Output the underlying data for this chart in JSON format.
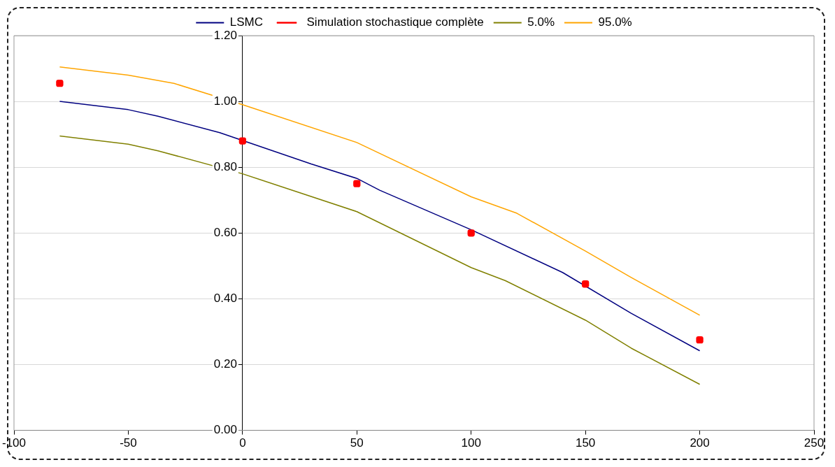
{
  "chart_data": {
    "type": "line",
    "xlim": [
      -100,
      250
    ],
    "xticks": [
      -100,
      -50,
      0,
      50,
      100,
      150,
      200,
      250
    ],
    "ylim": [
      0,
      1.2
    ],
    "yticks": [
      {
        "value": 0,
        "label": "0.00"
      },
      {
        "value": 0.2,
        "label": "0.20"
      },
      {
        "value": 0.4,
        "label": "0.40"
      },
      {
        "value": 0.6,
        "label": "0.60"
      },
      {
        "value": 0.8,
        "label": "0.80"
      },
      {
        "value": 1.0,
        "label": "1.00"
      },
      {
        "value": 1.2,
        "label": "1.20"
      }
    ],
    "grid": "y",
    "legend": "top",
    "series": [
      {
        "name": "LSMC",
        "type": "line",
        "color": "#000080",
        "x": [
          -80,
          -50,
          -37,
          -10,
          30,
          50,
          60,
          100,
          140,
          170,
          200
        ],
        "values": [
          1.0,
          0.975,
          0.955,
          0.905,
          0.81,
          0.766,
          0.73,
          0.61,
          0.48,
          0.356,
          0.242
        ]
      },
      {
        "name": "Simulation stochastique complète",
        "type": "scatter",
        "marker": "square",
        "color": "#ff0000",
        "x": [
          -80,
          0,
          50,
          100,
          150,
          200
        ],
        "values": [
          1.055,
          0.88,
          0.75,
          0.6,
          0.445,
          0.275
        ]
      },
      {
        "name": "5.0%",
        "type": "line",
        "color": "#808000",
        "x": [
          -80,
          -50,
          -37,
          0,
          50,
          100,
          115,
          150,
          170,
          200
        ],
        "values": [
          0.895,
          0.87,
          0.85,
          0.78,
          0.665,
          0.495,
          0.455,
          0.335,
          0.25,
          0.14
        ]
      },
      {
        "name": "95.0%",
        "type": "line",
        "color": "#ffa500",
        "x": [
          -80,
          -50,
          -30,
          0,
          50,
          100,
          120,
          150,
          170,
          200
        ],
        "values": [
          1.105,
          1.08,
          1.055,
          0.99,
          0.875,
          0.71,
          0.66,
          0.545,
          0.465,
          0.35
        ]
      }
    ]
  }
}
